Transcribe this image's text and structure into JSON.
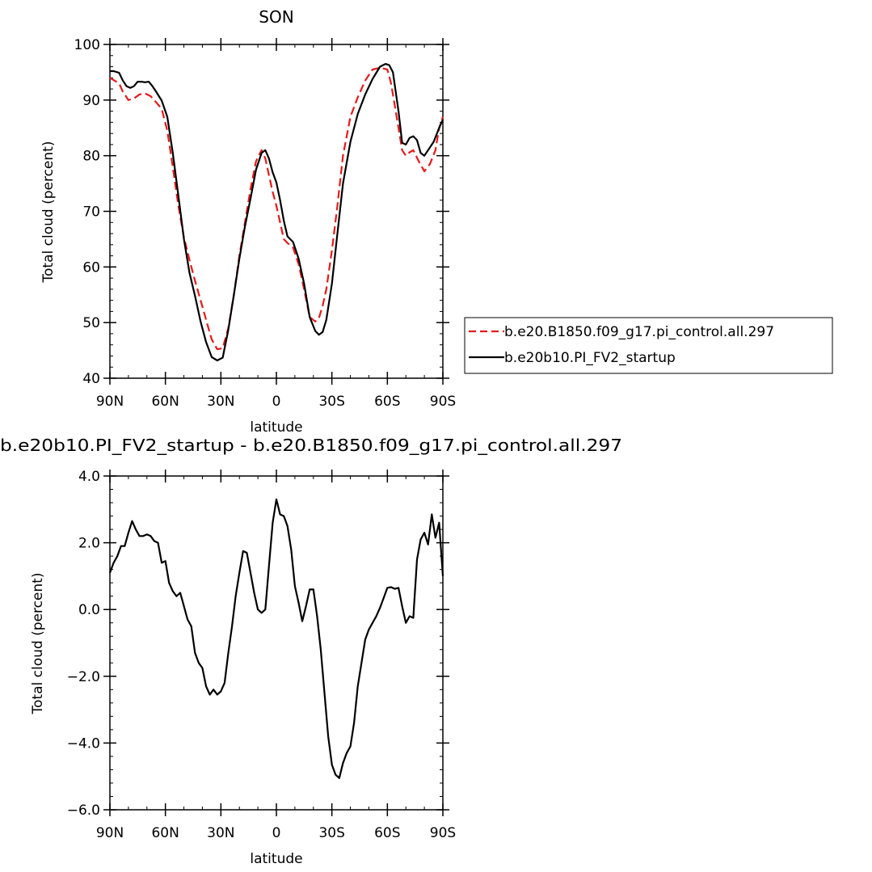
{
  "chart_data": [
    {
      "type": "line",
      "title": "SON",
      "xlabel": "latitude",
      "ylabel": "Total cloud (percent)",
      "xlim": [
        -90,
        90
      ],
      "ylim": [
        40,
        100
      ],
      "x_ticks": [
        -90,
        -60,
        -30,
        0,
        30,
        60,
        90
      ],
      "x_tick_labels": [
        "90N",
        "60N",
        "30N",
        "0",
        "30S",
        "60S",
        "90S"
      ],
      "y_ticks": [
        40,
        50,
        60,
        70,
        80,
        90,
        100
      ],
      "y_tick_labels": [
        "40",
        "50",
        "60",
        "70",
        "80",
        "90",
        "100"
      ],
      "grid": false,
      "legend_position": "right",
      "series": [
        {
          "name": "b.e20.B1850.f09_g17.pi_control.all.297",
          "color": "#e41a1c",
          "dash": "dashed",
          "x": [
            -90,
            -85,
            -83,
            -80,
            -77,
            -74,
            -71,
            -68,
            -65,
            -62,
            -59,
            -56,
            -53,
            -50,
            -47,
            -44,
            -41,
            -38,
            -35,
            -32,
            -29,
            -26,
            -23,
            -20,
            -17,
            -14,
            -11,
            -8,
            -6,
            -4,
            -2,
            0,
            2,
            4,
            6,
            9,
            12,
            15,
            18,
            21,
            23,
            25,
            27,
            30,
            33,
            36,
            40,
            44,
            48,
            52,
            56,
            60,
            62,
            64,
            66,
            68,
            70,
            72,
            74,
            77,
            80,
            83,
            86,
            88,
            90
          ],
          "y": [
            94,
            93,
            91.5,
            90,
            90.3,
            91,
            91.2,
            90.7,
            89.6,
            88.4,
            84.5,
            78,
            71,
            65.3,
            61.3,
            57.5,
            54,
            50.5,
            47,
            45.2,
            45.4,
            49,
            55,
            62,
            68,
            74,
            79,
            81,
            79.5,
            76.5,
            73.5,
            71,
            68,
            65,
            64.3,
            63.5,
            60.5,
            56,
            51,
            50.2,
            50.8,
            53,
            56,
            63,
            71,
            80,
            87,
            90.5,
            93.5,
            95.5,
            95.8,
            95.5,
            93,
            89,
            85,
            81,
            80,
            80.6,
            81,
            79,
            77.2,
            78.5,
            81,
            85,
            87
          ]
        },
        {
          "name": "b.e20b10.PI_FV2_startup",
          "color": "#000000",
          "dash": "solid",
          "x": [
            -90,
            -88,
            -85,
            -83,
            -81,
            -79,
            -77,
            -75,
            -73,
            -71,
            -69,
            -67,
            -65,
            -62,
            -59,
            -56,
            -53,
            -50,
            -47,
            -44,
            -41,
            -38,
            -35,
            -32,
            -29,
            -26,
            -23,
            -20,
            -17,
            -14,
            -11,
            -8,
            -6,
            -4,
            -2,
            0,
            2,
            4,
            6,
            9,
            12,
            15,
            18,
            21,
            23,
            25,
            27,
            30,
            33,
            36,
            40,
            44,
            48,
            52,
            56,
            59,
            61,
            63,
            66,
            68,
            70,
            72,
            74,
            76,
            78,
            80,
            82,
            85,
            88,
            90
          ],
          "y": [
            95.2,
            95.2,
            94.9,
            93.5,
            92.5,
            92.2,
            92.5,
            93.3,
            93.3,
            93.2,
            93.3,
            92.5,
            91.5,
            89.9,
            87,
            80.5,
            72.8,
            65,
            59,
            54.8,
            50.2,
            46.5,
            43.8,
            43.2,
            43.7,
            48.7,
            55,
            61.5,
            67.3,
            72.3,
            77.5,
            80.5,
            81,
            79.5,
            77,
            75.2,
            72,
            68.3,
            65.5,
            64.5,
            61.5,
            57,
            51,
            48.5,
            47.8,
            48.3,
            50.5,
            57,
            66,
            75,
            82.5,
            87.5,
            91,
            93.8,
            96,
            96.5,
            96.3,
            95,
            88,
            82.3,
            82,
            83.2,
            83.5,
            82.8,
            80.5,
            80,
            81,
            82.5,
            85,
            86.5
          ]
        }
      ]
    },
    {
      "type": "line",
      "title": "b.e20b10.PI_FV2_startup - b.e20.B1850.f09_g17.pi_control.all.297",
      "xlabel": "latitude",
      "ylabel": "Total cloud (percent)",
      "xlim": [
        -90,
        90
      ],
      "ylim": [
        -6.0,
        4.0
      ],
      "x_ticks": [
        -90,
        -60,
        -30,
        0,
        30,
        60,
        90
      ],
      "x_tick_labels": [
        "90N",
        "60N",
        "30N",
        "0",
        "30S",
        "60S",
        "90S"
      ],
      "y_ticks": [
        -6.0,
        -4.0,
        -2.0,
        0.0,
        2.0,
        4.0
      ],
      "y_tick_labels": [
        "−6.0",
        "−4.0",
        "−2.0",
        "0.0",
        "2.0",
        "4.0"
      ],
      "grid": false,
      "series": [
        {
          "name": "",
          "color": "#000000",
          "dash": "solid",
          "x": [
            -90,
            -88,
            -86,
            -84,
            -82,
            -80,
            -78,
            -76,
            -74,
            -72,
            -70,
            -68,
            -66,
            -64,
            -62,
            -60,
            -58,
            -56,
            -54,
            -52,
            -50,
            -48,
            -46,
            -44,
            -42,
            -40,
            -38,
            -36,
            -34,
            -32,
            -30,
            -28,
            -26,
            -24,
            -22,
            -20,
            -18,
            -16,
            -14,
            -12,
            -10,
            -8,
            -6,
            -4,
            -2,
            0,
            2,
            4,
            6,
            8,
            10,
            12,
            14,
            16,
            18,
            20,
            22,
            24,
            26,
            28,
            30,
            32,
            34,
            36,
            38,
            40,
            42,
            44,
            46,
            48,
            50,
            52,
            54,
            56,
            58,
            60,
            62,
            64,
            66,
            68,
            70,
            72,
            74,
            76,
            78,
            80,
            82,
            84,
            86,
            88,
            90
          ],
          "y": [
            1.1,
            1.4,
            1.6,
            1.9,
            1.9,
            2.3,
            2.65,
            2.4,
            2.2,
            2.2,
            2.25,
            2.2,
            2.05,
            2.0,
            1.4,
            1.45,
            0.8,
            0.55,
            0.4,
            0.5,
            0.1,
            -0.3,
            -0.5,
            -1.3,
            -1.6,
            -1.75,
            -2.3,
            -2.55,
            -2.4,
            -2.55,
            -2.45,
            -2.2,
            -1.3,
            -0.5,
            0.4,
            1.1,
            1.75,
            1.7,
            1.1,
            0.5,
            0.0,
            -0.1,
            0.0,
            1.3,
            2.6,
            3.3,
            2.85,
            2.8,
            2.5,
            1.8,
            0.7,
            0.2,
            -0.35,
            0.1,
            0.6,
            0.6,
            -0.2,
            -1.2,
            -2.5,
            -3.8,
            -4.65,
            -4.95,
            -5.05,
            -4.6,
            -4.3,
            -4.1,
            -3.4,
            -2.3,
            -1.6,
            -0.9,
            -0.6,
            -0.4,
            -0.2,
            0.05,
            0.35,
            0.65,
            0.67,
            0.62,
            0.65,
            0.1,
            -0.4,
            -0.2,
            -0.25,
            1.5,
            2.1,
            2.3,
            1.95,
            2.85,
            2.15,
            2.6,
            1.0
          ]
        }
      ]
    }
  ]
}
